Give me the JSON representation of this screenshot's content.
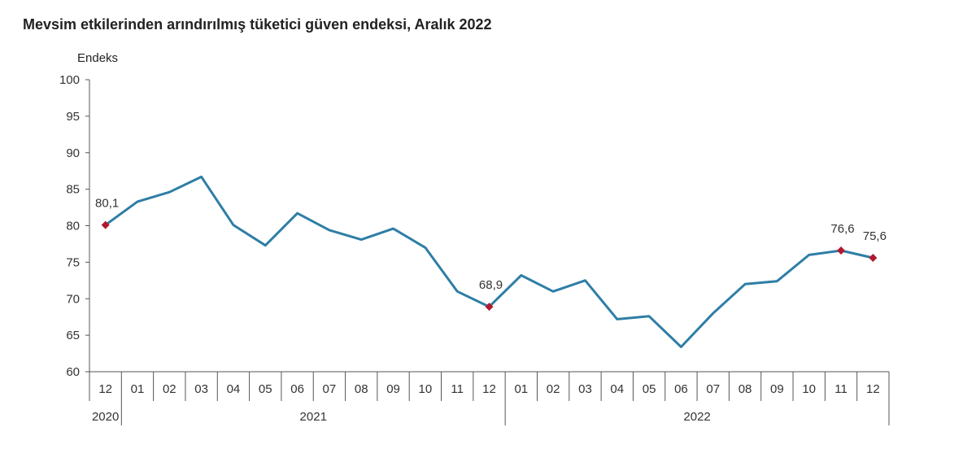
{
  "chart_data": {
    "type": "line",
    "title": "Mevsim etkilerinden arındırılmış tüketici güven endeksi, Aralık 2022",
    "ylabel": "Endeks",
    "xlabel": "",
    "ylim": [
      60,
      100
    ],
    "yticks": [
      60,
      65,
      70,
      75,
      80,
      85,
      90,
      95,
      100
    ],
    "grid": false,
    "categories": [
      "12",
      "01",
      "02",
      "03",
      "04",
      "05",
      "06",
      "07",
      "08",
      "09",
      "10",
      "11",
      "12",
      "01",
      "02",
      "03",
      "04",
      "05",
      "06",
      "07",
      "08",
      "09",
      "10",
      "11",
      "12"
    ],
    "year_groups": [
      {
        "label": "2020",
        "start": 0,
        "end": 0
      },
      {
        "label": "2021",
        "start": 1,
        "end": 12
      },
      {
        "label": "2022",
        "start": 13,
        "end": 24
      }
    ],
    "series": [
      {
        "values": [
          80.1,
          83.3,
          84.6,
          86.7,
          80.1,
          77.3,
          81.7,
          79.4,
          78.1,
          79.6,
          77.0,
          71.0,
          68.9,
          73.2,
          71.0,
          72.5,
          67.2,
          67.6,
          63.4,
          68.0,
          72.0,
          72.4,
          76.0,
          76.6,
          75.6
        ],
        "color": "#2e7ea6"
      }
    ],
    "annotations": [
      {
        "index": 0,
        "label": "80,1"
      },
      {
        "index": 12,
        "label": "68,9"
      },
      {
        "index": 23,
        "label": "76,6"
      },
      {
        "index": 24,
        "label": "75,6"
      }
    ],
    "marker_color": "#b0192e",
    "axis_color": "#555555"
  }
}
